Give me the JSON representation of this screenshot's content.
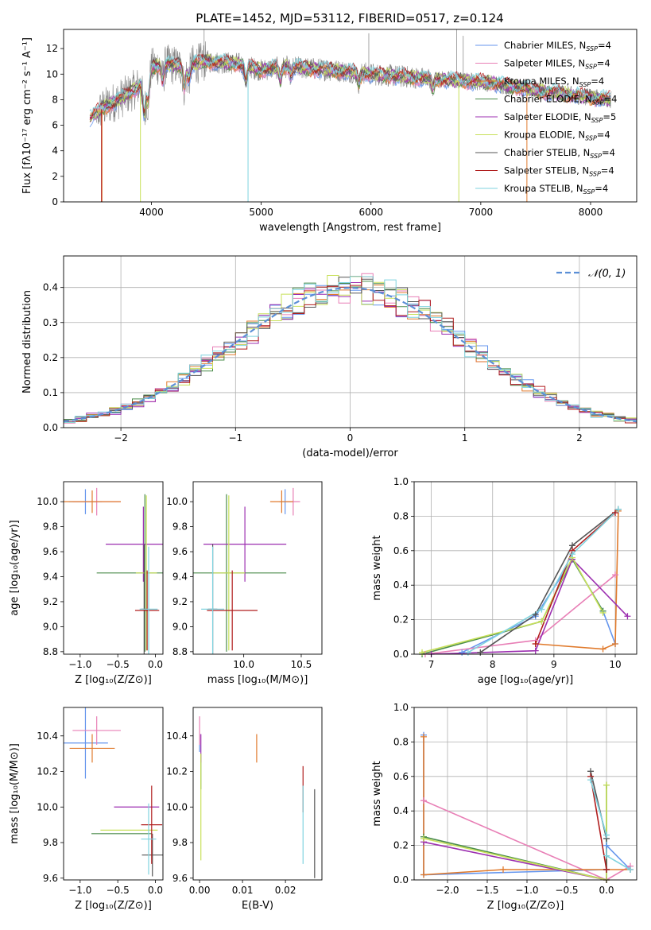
{
  "colors": {
    "chabrier_miles": "#6495ed",
    "salpeter_miles": "#e87fb6",
    "kroupa_miles": "#e07a2c",
    "chabrier_elodie": "#4a8c4a",
    "salpeter_elodie": "#9c2fb0",
    "kroupa_elodie": "#c8e05a",
    "chabrier_stelib": "#555555",
    "salpeter_stelib": "#b01e1e",
    "kroupa_stelib": "#7fd3df",
    "gray_flux": "#808080",
    "normal_curve": "#5b8fd6"
  },
  "chart_data": [
    {
      "type": "line",
      "id": "spectrum",
      "title": "PLATE=1452, MJD=53112, FIBERID=0517, z=0.124",
      "xlabel": "wavelength [Angstrom, rest frame]",
      "ylabel": "Flux [fλ10⁻¹⁷ erg cm⁻² s⁻¹ A⁻¹]",
      "xlim": [
        3200,
        8420
      ],
      "ylim": [
        0,
        13.5
      ],
      "xticks": [
        4000,
        5000,
        6000,
        7000,
        8000
      ],
      "yticks": [
        0,
        2,
        4,
        6,
        8,
        10,
        12
      ],
      "legend": "top-right",
      "series": [
        {
          "name": "Chabrier MILES, N_SSP=4",
          "key": "chabrier_miles"
        },
        {
          "name": "Salpeter MILES, N_SSP=4",
          "key": "salpeter_miles"
        },
        {
          "name": "Kroupa MILES, N_SSP=4",
          "key": "kroupa_miles"
        },
        {
          "name": "Chabrier ELODIE, N_SSP=4",
          "key": "chabrier_elodie"
        },
        {
          "name": "Salpeter ELODIE, N_SSP=5",
          "key": "salpeter_elodie"
        },
        {
          "name": "Kroupa ELODIE, N_SSP=4",
          "key": "kroupa_elodie"
        },
        {
          "name": "Chabrier STELIB, N_SSP=4",
          "key": "chabrier_stelib"
        },
        {
          "name": "Salpeter STELIB, N_SSP=4",
          "key": "salpeter_stelib"
        },
        {
          "name": "Kroupa STELIB, N_SSP=4",
          "key": "kroupa_stelib"
        }
      ],
      "continuum": {
        "x": [
          3400,
          3500,
          3550,
          3700,
          3800,
          3950,
          4000,
          4100,
          4300,
          4500,
          4800,
          5000,
          5200,
          5500,
          5800,
          6000,
          6300,
          6600,
          7000,
          7300,
          7600,
          8000,
          8200
        ],
        "y": [
          6.3,
          7.0,
          7.3,
          8.0,
          8.5,
          9.5,
          10.5,
          10.8,
          10.6,
          11.0,
          10.8,
          10.3,
          10.6,
          10.4,
          10.2,
          10.0,
          9.8,
          9.6,
          9.4,
          9.0,
          8.6,
          8.2,
          8.0
        ]
      }
    },
    {
      "type": "line",
      "id": "residuals",
      "xlabel": "(data-model)/error",
      "ylabel": "Normed distribution",
      "xlim": [
        -2.5,
        2.5
      ],
      "ylim": [
        0,
        0.49
      ],
      "xticks": [
        -2,
        -1,
        0,
        1,
        2
      ],
      "yticks": [
        0.0,
        0.1,
        0.2,
        0.3,
        0.4
      ],
      "grid": true,
      "legend": "top-right",
      "normal_label": "𝒩(0, 1)",
      "bin_width": 0.1
    },
    {
      "type": "scatter",
      "id": "age_vs_Z",
      "xlabel": "Z [log₁₀(Z/Z⊙)]",
      "ylabel": "age  [log₁₀(age/yr)]",
      "xlim": [
        -1.22,
        0.1
      ],
      "ylim": [
        8.78,
        10.16
      ],
      "xticks": [
        -1.0,
        -0.5,
        0.0
      ],
      "yticks": [
        8.8,
        9.0,
        9.2,
        9.4,
        9.6,
        9.8,
        10.0
      ],
      "points": [
        {
          "key": "chabrier_miles",
          "x": -0.93,
          "y": 10.0,
          "xerr": 0.22,
          "yerr": 0.1
        },
        {
          "key": "salpeter_miles",
          "x": -0.78,
          "y": 10.0,
          "xerr": 0.32,
          "yerr": 0.11
        },
        {
          "key": "kroupa_miles",
          "x": -0.84,
          "y": 10.0,
          "xerr": 0.38,
          "yerr": 0.09
        },
        {
          "key": "chabrier_elodie",
          "x": -0.14,
          "y": 9.43,
          "xerr": 0.64,
          "yerr": 0.63
        },
        {
          "key": "salpeter_elodie",
          "x": -0.16,
          "y": 9.66,
          "xerr": 0.5,
          "yerr": 0.3
        },
        {
          "key": "kroupa_elodie",
          "x": -0.12,
          "y": 9.43,
          "xerr": 0.14,
          "yerr": 0.62
        },
        {
          "key": "chabrier_stelib",
          "x": -0.15,
          "y": 9.14,
          "xerr": 0.04,
          "yerr": 0.52
        },
        {
          "key": "salpeter_stelib",
          "x": -0.11,
          "y": 9.13,
          "xerr": 0.16,
          "yerr": 0.32
        },
        {
          "key": "kroupa_stelib",
          "x": -0.09,
          "y": 9.14,
          "xerr": 0.12,
          "yerr": 0.5
        }
      ]
    },
    {
      "type": "scatter",
      "id": "age_vs_mass",
      "xlabel": "mass [log₁₀(M/M⊙)]",
      "ylabel": "",
      "xlim": [
        9.56,
        10.68
      ],
      "ylim": [
        8.78,
        10.16
      ],
      "xticks": [
        9.5,
        10.0,
        10.5
      ],
      "yticks": [
        8.8,
        9.0,
        9.2,
        9.4,
        9.6,
        9.8,
        10.0
      ],
      "points": [
        {
          "key": "chabrier_miles",
          "x": 10.36,
          "y": 10.0,
          "xerr": 0.05,
          "yerr": 0.1
        },
        {
          "key": "salpeter_miles",
          "x": 10.43,
          "y": 10.0,
          "xerr": 0.06,
          "yerr": 0.11
        },
        {
          "key": "kroupa_miles",
          "x": 10.33,
          "y": 10.0,
          "xerr": 0.1,
          "yerr": 0.09
        },
        {
          "key": "chabrier_elodie",
          "x": 9.85,
          "y": 9.43,
          "xerr": 0.52,
          "yerr": 0.63
        },
        {
          "key": "salpeter_elodie",
          "x": 10.01,
          "y": 9.66,
          "xerr": 0.36,
          "yerr": 0.3
        },
        {
          "key": "kroupa_elodie",
          "x": 9.87,
          "y": 9.43,
          "xerr": 0.14,
          "yerr": 0.62
        },
        {
          "key": "chabrier_stelib",
          "x": 9.73,
          "y": 9.14,
          "xerr": 0.04,
          "yerr": 0.52
        },
        {
          "key": "salpeter_stelib",
          "x": 9.9,
          "y": 9.13,
          "xerr": 0.22,
          "yerr": 0.32
        },
        {
          "key": "kroupa_stelib",
          "x": 9.73,
          "y": 9.14,
          "xerr": 0.1,
          "yerr": 0.5
        }
      ]
    },
    {
      "type": "line",
      "id": "massweight_vs_age",
      "xlabel": "age  [log₁₀(age/yr)]",
      "ylabel": "mass weight",
      "xlim": [
        6.72,
        10.35
      ],
      "ylim": [
        0,
        1.0
      ],
      "xticks": [
        7,
        8,
        9,
        10
      ],
      "yticks": [
        0.0,
        0.2,
        0.4,
        0.6,
        0.8,
        1.0
      ],
      "grid": true,
      "series": [
        {
          "key": "chabrier_miles",
          "x": [
            7.5,
            8.7,
            9.3,
            9.8,
            10.0
          ],
          "y": [
            0.01,
            0.22,
            0.55,
            0.25,
            0.06
          ]
        },
        {
          "key": "salpeter_miles",
          "x": [
            6.9,
            8.7,
            10.0
          ],
          "y": [
            0.0,
            0.08,
            0.46
          ]
        },
        {
          "key": "kroupa_miles",
          "x": [
            8.7,
            9.8,
            10.0,
            10.05
          ],
          "y": [
            0.06,
            0.03,
            0.06,
            0.83
          ]
        },
        {
          "key": "chabrier_elodie",
          "x": [
            6.85,
            8.8,
            9.3,
            9.8
          ],
          "y": [
            0.0,
            0.19,
            0.55,
            0.25
          ]
        },
        {
          "key": "salpeter_elodie",
          "x": [
            7.0,
            8.7,
            9.3,
            10.2
          ],
          "y": [
            0.0,
            0.02,
            0.55,
            0.22
          ]
        },
        {
          "key": "kroupa_elodie",
          "x": [
            6.85,
            8.8,
            9.3,
            9.8
          ],
          "y": [
            0.01,
            0.19,
            0.56,
            0.24
          ]
        },
        {
          "key": "chabrier_stelib",
          "x": [
            7.8,
            8.7,
            9.3,
            10.05
          ],
          "y": [
            0.01,
            0.23,
            0.63,
            0.84
          ]
        },
        {
          "key": "salpeter_stelib",
          "x": [
            8.7,
            9.3,
            10.0
          ],
          "y": [
            0.06,
            0.6,
            0.82
          ]
        },
        {
          "key": "kroupa_stelib",
          "x": [
            7.6,
            8.8,
            9.3,
            10.05
          ],
          "y": [
            0.01,
            0.26,
            0.58,
            0.84
          ]
        }
      ]
    },
    {
      "type": "scatter",
      "id": "mass_vs_Z",
      "xlabel": "Z [log₁₀(Z/Z⊙)]",
      "ylabel": "mass [log₁₀(M/M⊙)]",
      "xlim": [
        -1.22,
        0.1
      ],
      "ylim": [
        9.59,
        10.56
      ],
      "xticks": [
        -1.0,
        -0.5,
        0.0
      ],
      "yticks": [
        9.6,
        9.8,
        10.0,
        10.2,
        10.4
      ],
      "points": [
        {
          "key": "chabrier_miles",
          "x": -0.93,
          "y": 10.36,
          "xerr": 0.3,
          "yerr": 0.2
        },
        {
          "key": "salpeter_miles",
          "x": -0.78,
          "y": 10.43,
          "xerr": 0.32,
          "yerr": 0.08
        },
        {
          "key": "kroupa_miles",
          "x": -0.84,
          "y": 10.33,
          "xerr": 0.3,
          "yerr": 0.08
        },
        {
          "key": "chabrier_elodie",
          "x": -0.45,
          "y": 9.85,
          "xerr": 0.4,
          "yerr": 0.0
        },
        {
          "key": "salpeter_elodie",
          "x": -0.25,
          "y": 10.0,
          "xerr": 0.3,
          "yerr": 0.0
        },
        {
          "key": "kroupa_elodie",
          "x": -0.35,
          "y": 9.87,
          "xerr": 0.38,
          "yerr": 0.0
        },
        {
          "key": "chabrier_stelib",
          "x": -0.04,
          "y": 9.73,
          "xerr": 0.14,
          "yerr": 0.12
        },
        {
          "key": "salpeter_stelib",
          "x": -0.05,
          "y": 9.9,
          "xerr": 0.14,
          "yerr": 0.22
        },
        {
          "key": "kroupa_stelib",
          "x": -0.09,
          "y": 9.82,
          "xerr": 0.1,
          "yerr": 0.2
        }
      ]
    },
    {
      "type": "scatter",
      "id": "mass_vs_EBV",
      "xlabel": "E(B-V)",
      "ylabel": "",
      "xlim": [
        -0.0015,
        0.0285
      ],
      "ylim": [
        9.59,
        10.56
      ],
      "xticks": [
        0.0,
        0.01,
        0.02
      ],
      "yticks": [
        9.6,
        9.8,
        10.0,
        10.2,
        10.4
      ],
      "points": [
        {
          "key": "chabrier_miles",
          "x": 0.0,
          "y": 10.36,
          "xerr": 0,
          "yerr": 0.05
        },
        {
          "key": "salpeter_miles",
          "x": 0.0,
          "y": 10.43,
          "xerr": 0,
          "yerr": 0.08
        },
        {
          "key": "kroupa_miles",
          "x": 0.0133,
          "y": 10.33,
          "xerr": 0,
          "yerr": 0.08
        },
        {
          "key": "chabrier_elodie",
          "x": 0.0003,
          "y": 10.2,
          "xerr": 0,
          "yerr": 0.1
        },
        {
          "key": "salpeter_elodie",
          "x": 0.0003,
          "y": 10.33,
          "xerr": 0,
          "yerr": 0.08
        },
        {
          "key": "kroupa_elodie",
          "x": 0.0003,
          "y": 10.0,
          "xerr": 0,
          "yerr": 0.3
        },
        {
          "key": "chabrier_stelib",
          "x": 0.0268,
          "y": 9.85,
          "xerr": 0,
          "yerr": 0.25
        },
        {
          "key": "salpeter_stelib",
          "x": 0.0241,
          "y": 10.1,
          "xerr": 0,
          "yerr": 0.13
        },
        {
          "key": "kroupa_stelib",
          "x": 0.0241,
          "y": 9.9,
          "xerr": 0,
          "yerr": 0.22
        }
      ]
    },
    {
      "type": "line",
      "id": "massweight_vs_Z",
      "xlabel": "Z [log₁₀(Z/Z⊙)]",
      "ylabel": "mass weight",
      "xlim": [
        -2.42,
        0.38
      ],
      "ylim": [
        0,
        1.0
      ],
      "xticks": [
        -2.0,
        -1.5,
        -1.0,
        -0.5,
        0.0
      ],
      "yticks": [
        0.0,
        0.2,
        0.4,
        0.6,
        0.8,
        1.0
      ],
      "grid": true,
      "series": [
        {
          "key": "chabrier_miles",
          "x": [
            -2.3,
            -2.3,
            0.0,
            0.0,
            0.3
          ],
          "y": [
            0.84,
            0.03,
            0.06,
            0.2,
            0.06
          ]
        },
        {
          "key": "salpeter_miles",
          "x": [
            -2.3,
            0.0,
            0.3
          ],
          "y": [
            0.46,
            0.0,
            0.08
          ]
        },
        {
          "key": "kroupa_miles",
          "x": [
            -2.3,
            -2.3,
            -1.3,
            0.0,
            0.3
          ],
          "y": [
            0.83,
            0.03,
            0.06,
            0.06,
            0.06
          ]
        },
        {
          "key": "chabrier_elodie",
          "x": [
            -2.3,
            0.0,
            0.0
          ],
          "y": [
            0.25,
            0.0,
            0.55
          ]
        },
        {
          "key": "salpeter_elodie",
          "x": [
            -2.3,
            0.0
          ],
          "y": [
            0.22,
            0.0
          ]
        },
        {
          "key": "kroupa_elodie",
          "x": [
            -2.3,
            0.0,
            0.0
          ],
          "y": [
            0.24,
            0.0,
            0.55
          ]
        },
        {
          "key": "chabrier_stelib",
          "x": [
            -0.2,
            0.0,
            0.0
          ],
          "y": [
            0.63,
            0.24,
            0.06
          ]
        },
        {
          "key": "salpeter_stelib",
          "x": [
            -0.2,
            0.0
          ],
          "y": [
            0.6,
            0.06
          ]
        },
        {
          "key": "kroupa_stelib",
          "x": [
            -0.2,
            0.0,
            0.0,
            0.3
          ],
          "y": [
            0.58,
            0.26,
            0.14,
            0.06
          ]
        }
      ]
    }
  ]
}
